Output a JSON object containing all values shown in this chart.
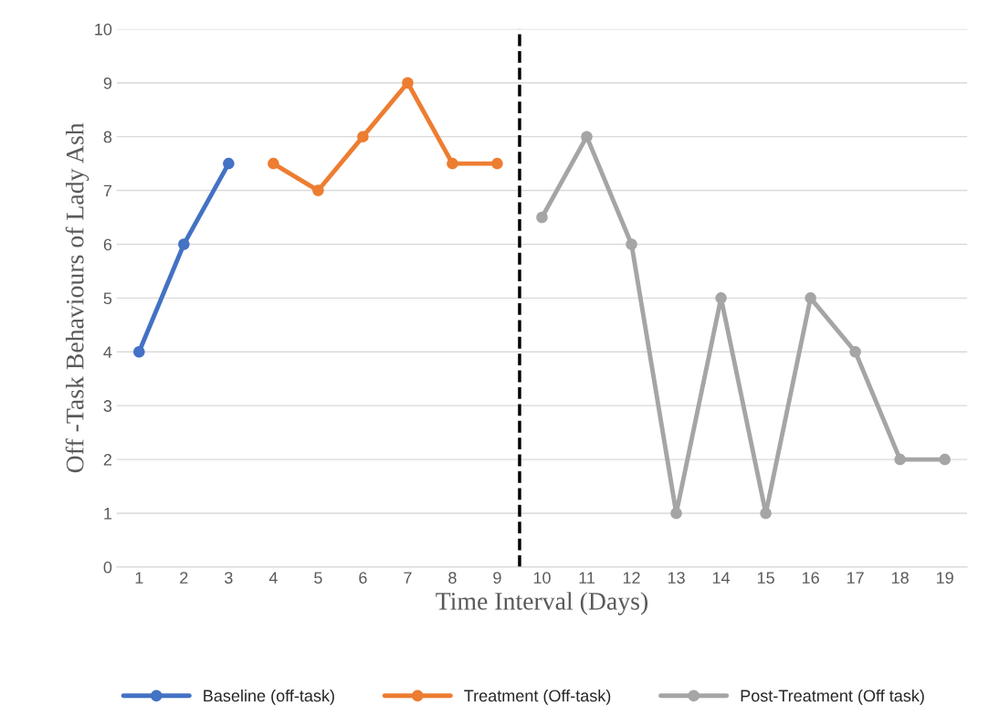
{
  "chart_data": {
    "type": "line",
    "xlabel": "Time Interval (Days)",
    "ylabel": "Off -Task Behaviours of Lady Ash",
    "series": [
      {
        "name": "Baseline (off-task)",
        "color": "#4472c4",
        "x": [
          1,
          2,
          3
        ],
        "values": [
          4,
          6,
          7.5
        ]
      },
      {
        "name": "Treatment (Off-task)",
        "color": "#ed7d31",
        "x": [
          4,
          5,
          6,
          7,
          8,
          9
        ],
        "values": [
          7.5,
          7,
          8,
          9,
          7.5,
          7.5
        ]
      },
      {
        "name": "Post-Treatment (Off task)",
        "color": "#a5a5a5",
        "x": [
          10,
          11,
          12,
          13,
          14,
          15,
          16,
          17,
          18,
          19
        ],
        "values": [
          6.5,
          8,
          6,
          1,
          5,
          1,
          5,
          4,
          2,
          2
        ]
      }
    ],
    "xlim": [
      0.5,
      19.5
    ],
    "xticks": [
      1,
      2,
      3,
      4,
      5,
      6,
      7,
      8,
      9,
      10,
      11,
      12,
      13,
      14,
      15,
      16,
      17,
      18,
      19
    ],
    "ylim": [
      0,
      10
    ],
    "yticks": [
      0,
      1,
      2,
      3,
      4,
      5,
      6,
      7,
      8,
      9,
      10
    ],
    "ref_lines": [
      {
        "axis": "x",
        "value": 9.5,
        "color": "#000000",
        "line_style": "dashed"
      }
    ],
    "grid": "y",
    "legend": "bottom",
    "marker": "circle",
    "line_style": "solid"
  }
}
